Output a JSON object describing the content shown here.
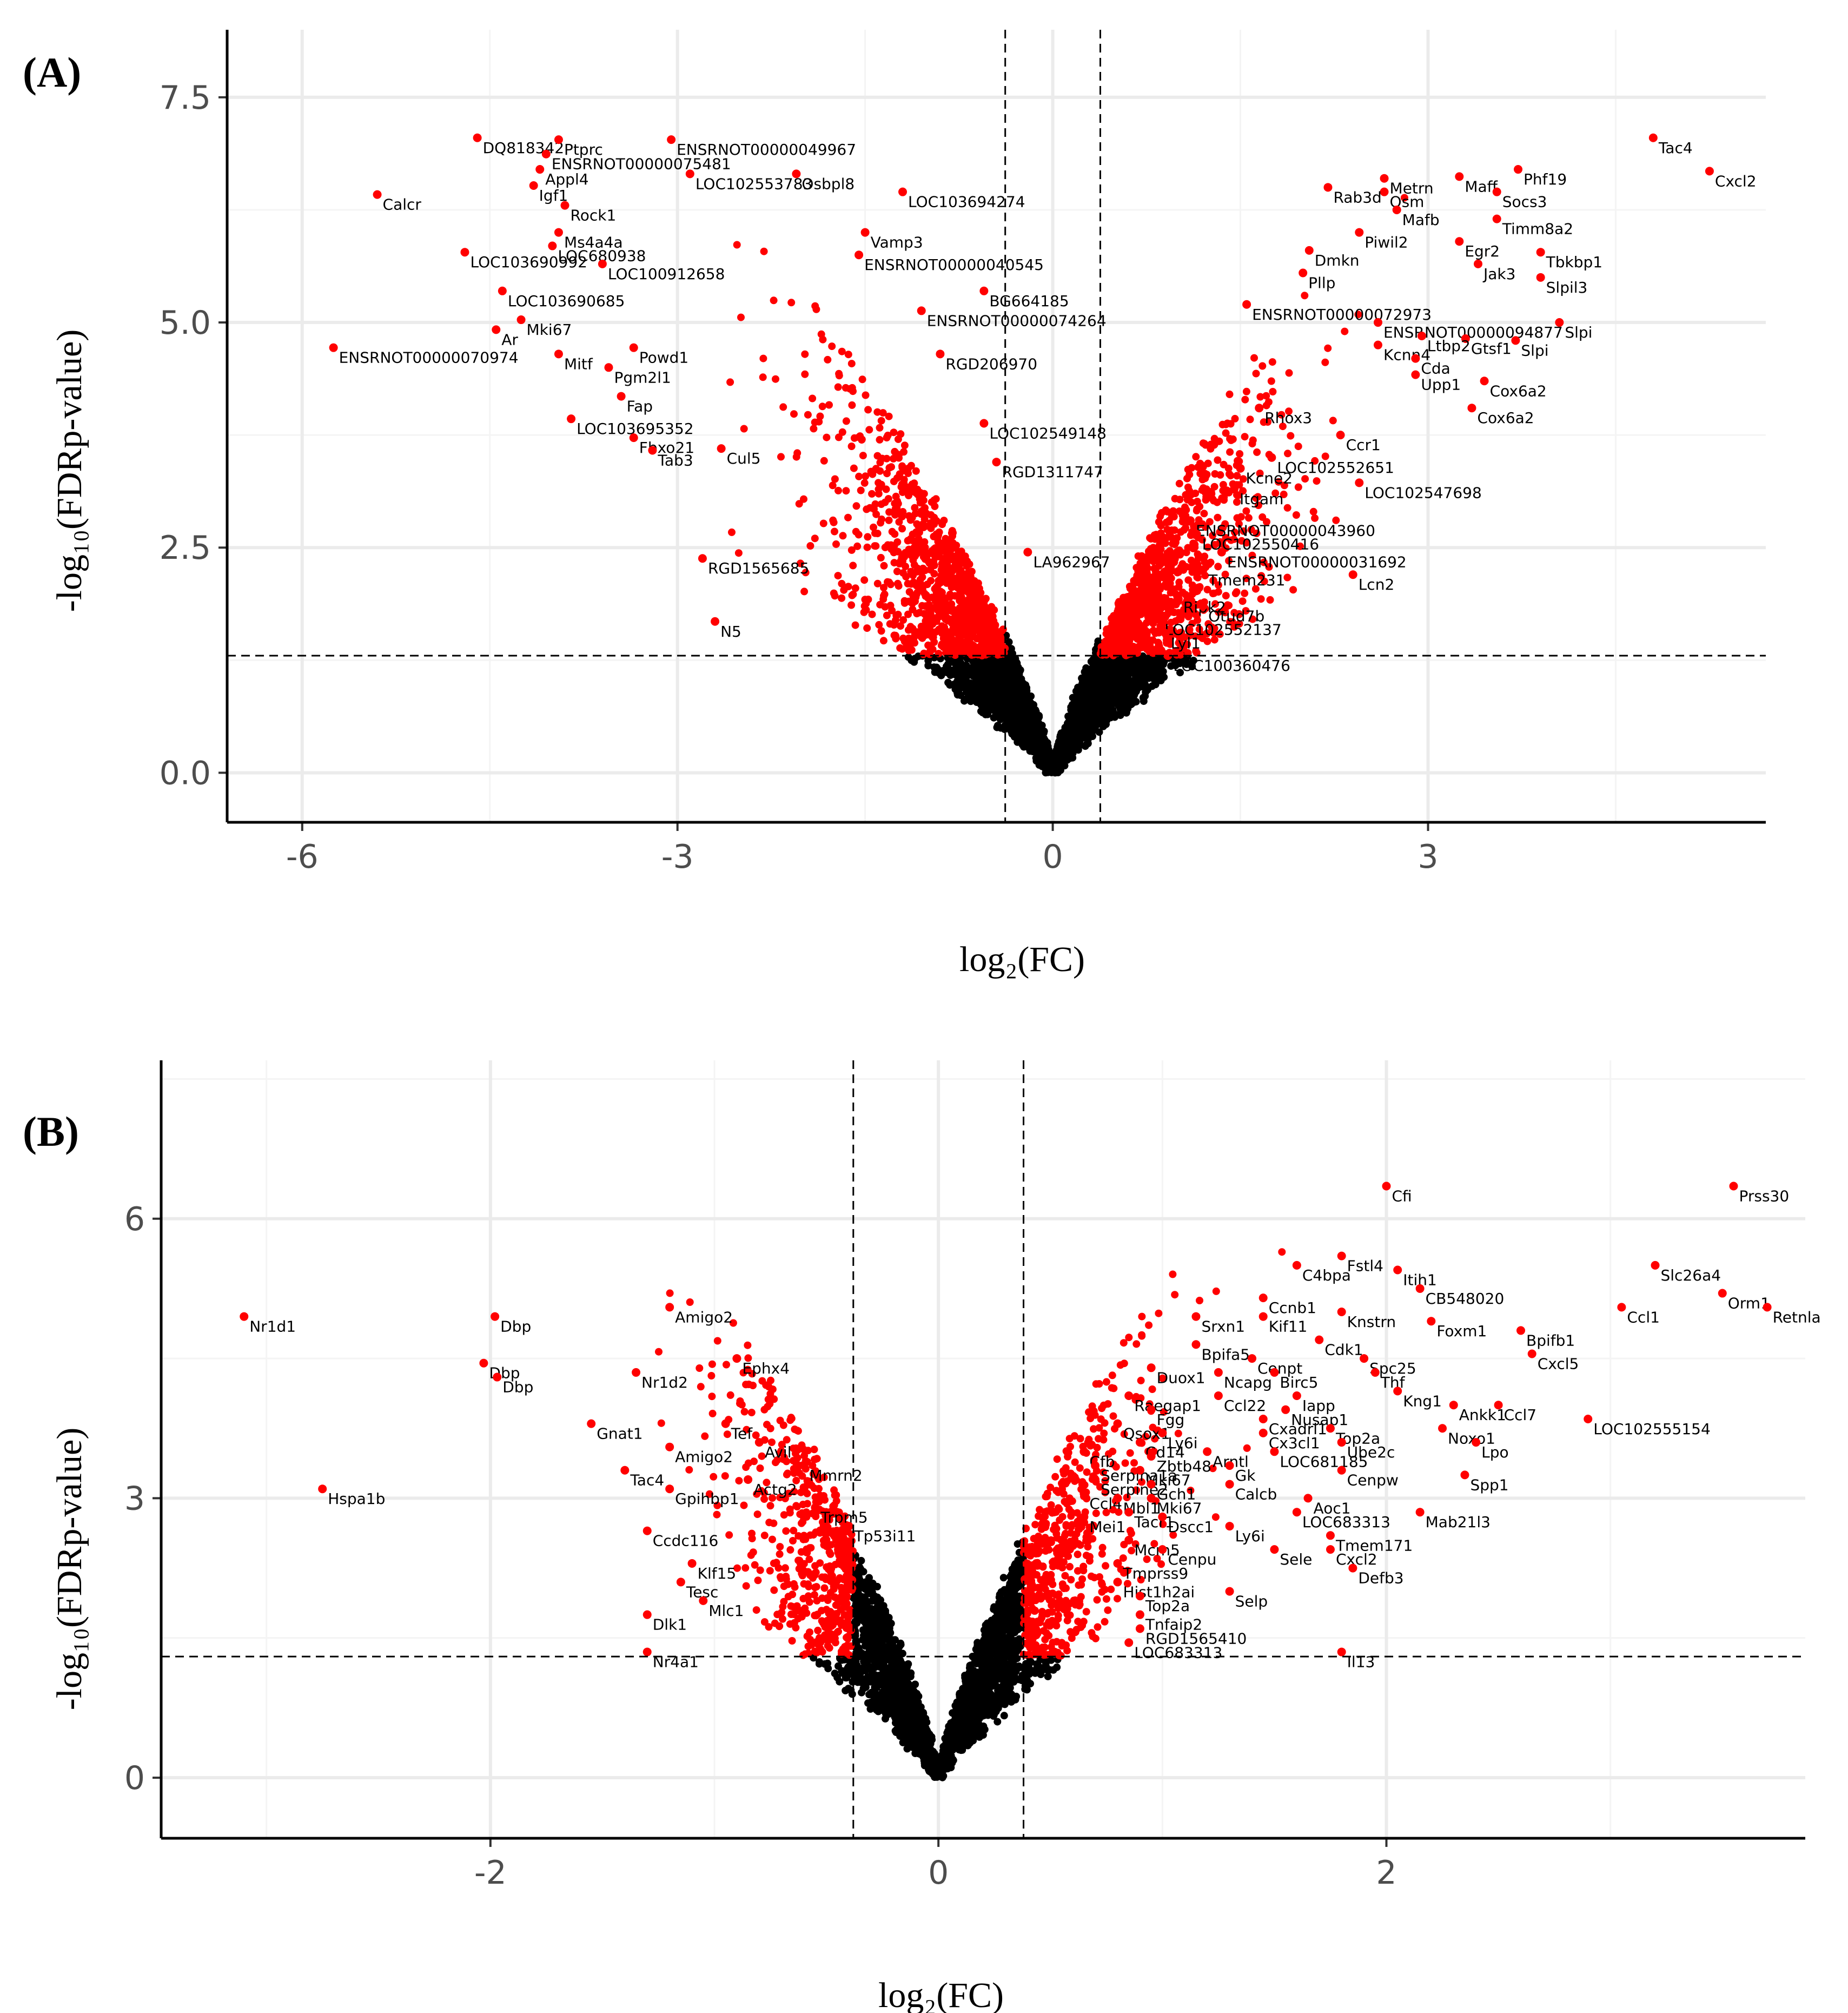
{
  "colors": {
    "significant": "#ff0000",
    "not_significant": "#000000",
    "grid": "#ebebeb",
    "tick_text": "#4d4d4d"
  },
  "chart_data": [
    {
      "panel": "(A)",
      "type": "scatter",
      "title": "",
      "xlabel": "log₂(FC)",
      "ylabel": "-log₁₀(FDRp-value)",
      "xlim": [
        -6.6,
        5.7
      ],
      "ylim": [
        -0.55,
        8.25
      ],
      "xticks": [
        -6,
        -3,
        0,
        3
      ],
      "xtick_labels": [
        "-6",
        "-3",
        "0",
        "3"
      ],
      "yticks": [
        0,
        2.5,
        5,
        7.5
      ],
      "ytick_labels": [
        "0.0",
        "2.5",
        "5.0",
        "7.5"
      ],
      "fc_threshold": [
        -0.38,
        0.38
      ],
      "fdr_threshold": 1.3,
      "grid": true,
      "legend": "none",
      "series": [
        {
          "name": "significant",
          "color": "#ff0000"
        },
        {
          "name": "not significant",
          "color": "#000000"
        }
      ],
      "labeled_points": [
        {
          "x": -4.6,
          "y": 7.05,
          "label": "DQ818342"
        },
        {
          "x": -3.95,
          "y": 7.03,
          "label": "Ptprc"
        },
        {
          "x": -3.05,
          "y": 7.03,
          "label": "ENSRNOT00000049967"
        },
        {
          "x": -4.05,
          "y": 6.87,
          "label": "ENSRNOT00000075481"
        },
        {
          "x": -4.1,
          "y": 6.7,
          "label": "Appl4"
        },
        {
          "x": -2.9,
          "y": 6.65,
          "label": "LOC102553783"
        },
        {
          "x": -2.05,
          "y": 6.65,
          "label": "Osbpl8"
        },
        {
          "x": -4.15,
          "y": 6.52,
          "label": "Igf1"
        },
        {
          "x": -5.4,
          "y": 6.42,
          "label": "Calcr"
        },
        {
          "x": -1.2,
          "y": 6.45,
          "label": "LOC103694274"
        },
        {
          "x": -4.7,
          "y": 5.78,
          "label": "LOC103690992"
        },
        {
          "x": -4.0,
          "y": 5.85,
          "label": "LOC680938"
        },
        {
          "x": -3.95,
          "y": 6.0,
          "label": "Ms4a4a"
        },
        {
          "x": -3.9,
          "y": 6.3,
          "label": "Rock1"
        },
        {
          "x": -3.6,
          "y": 5.65,
          "label": "LOC100912658"
        },
        {
          "x": -1.5,
          "y": 6.0,
          "label": "Vamp3"
        },
        {
          "x": -1.55,
          "y": 5.75,
          "label": "ENSRNOT00000040545"
        },
        {
          "x": -4.4,
          "y": 5.35,
          "label": "LOC103690685"
        },
        {
          "x": -0.55,
          "y": 5.35,
          "label": "BG664185"
        },
        {
          "x": -1.05,
          "y": 5.13,
          "label": "ENSRNOT00000074264"
        },
        {
          "x": -4.25,
          "y": 5.03,
          "label": "Mki67"
        },
        {
          "x": -4.45,
          "y": 4.92,
          "label": "Ar"
        },
        {
          "x": -5.75,
          "y": 4.72,
          "label": "ENSRNOT00000070974"
        },
        {
          "x": -3.95,
          "y": 4.65,
          "label": "Mitf"
        },
        {
          "x": -0.9,
          "y": 4.65,
          "label": "RGD206970"
        },
        {
          "x": -3.35,
          "y": 4.72,
          "label": "Powd1"
        },
        {
          "x": -3.55,
          "y": 4.5,
          "label": "Pgm2l1"
        },
        {
          "x": -3.45,
          "y": 4.18,
          "label": "Fap"
        },
        {
          "x": -3.85,
          "y": 3.93,
          "label": "LOC103695352"
        },
        {
          "x": -3.35,
          "y": 3.72,
          "label": "Fbxo21"
        },
        {
          "x": -3.2,
          "y": 3.58,
          "label": "Tab3"
        },
        {
          "x": -2.65,
          "y": 3.6,
          "label": "Cul5"
        },
        {
          "x": -0.55,
          "y": 3.88,
          "label": "LOC102549148"
        },
        {
          "x": -0.45,
          "y": 3.45,
          "label": "RGD1311747"
        },
        {
          "x": -2.8,
          "y": 2.38,
          "label": "RGD1565685"
        },
        {
          "x": -2.7,
          "y": 1.68,
          "label": "N5"
        },
        {
          "x": -0.2,
          "y": 2.45,
          "label": "LA962967"
        },
        {
          "x": 4.8,
          "y": 7.05,
          "label": "Tac4"
        },
        {
          "x": 5.25,
          "y": 6.68,
          "label": "Cxcl2"
        },
        {
          "x": 3.72,
          "y": 6.7,
          "label": "Phf19"
        },
        {
          "x": 3.25,
          "y": 6.62,
          "label": "Maff"
        },
        {
          "x": 2.65,
          "y": 6.6,
          "label": "Metrn"
        },
        {
          "x": 2.65,
          "y": 6.45,
          "label": "Osm"
        },
        {
          "x": 2.75,
          "y": 6.25,
          "label": "Mafb"
        },
        {
          "x": 3.55,
          "y": 6.45,
          "label": "Socs3"
        },
        {
          "x": 3.55,
          "y": 6.15,
          "label": "Timm8a2"
        },
        {
          "x": 2.2,
          "y": 6.5,
          "label": "Rab3d"
        },
        {
          "x": 2.45,
          "y": 6.0,
          "label": "Piwil2"
        },
        {
          "x": 3.25,
          "y": 5.9,
          "label": "Egr2"
        },
        {
          "x": 3.4,
          "y": 5.65,
          "label": "Jak3"
        },
        {
          "x": 3.9,
          "y": 5.78,
          "label": "Tbkbp1"
        },
        {
          "x": 3.9,
          "y": 5.5,
          "label": "Slpil3"
        },
        {
          "x": 2.05,
          "y": 5.8,
          "label": "Dmkn"
        },
        {
          "x": 2.0,
          "y": 5.55,
          "label": "Pllp"
        },
        {
          "x": 1.55,
          "y": 5.2,
          "label": "ENSRNOT00000072973"
        },
        {
          "x": 2.6,
          "y": 5.0,
          "label": "ENSRNOT00000094877"
        },
        {
          "x": 4.05,
          "y": 5.0,
          "label": "Slpi"
        },
        {
          "x": 3.7,
          "y": 4.8,
          "label": "Slpi"
        },
        {
          "x": 3.3,
          "y": 4.82,
          "label": "Gtsf1"
        },
        {
          "x": 2.95,
          "y": 4.85,
          "label": "Ltbp2"
        },
        {
          "x": 2.6,
          "y": 4.75,
          "label": "Kcnn4"
        },
        {
          "x": 2.9,
          "y": 4.6,
          "label": "Cda"
        },
        {
          "x": 2.9,
          "y": 4.42,
          "label": "Upp1"
        },
        {
          "x": 3.45,
          "y": 4.35,
          "label": "Cox6a2"
        },
        {
          "x": 3.35,
          "y": 4.05,
          "label": "Cox6a2"
        },
        {
          "x": 2.3,
          "y": 3.75,
          "label": "Ccr1"
        },
        {
          "x": 1.75,
          "y": 3.5,
          "label": "LOC102552651"
        },
        {
          "x": 2.45,
          "y": 3.22,
          "label": "LOC102547698"
        },
        {
          "x": 1.45,
          "y": 3.15,
          "label": "Itgam"
        },
        {
          "x": 1.5,
          "y": 3.38,
          "label": "Kcne2"
        },
        {
          "x": 1.65,
          "y": 4.05,
          "label": "Rhox3"
        },
        {
          "x": 1.1,
          "y": 2.8,
          "label": "ENSRNOT00000043960"
        },
        {
          "x": 1.15,
          "y": 2.65,
          "label": "LOC102550416"
        },
        {
          "x": 1.35,
          "y": 2.45,
          "label": "ENSRNOT00000031692"
        },
        {
          "x": 2.4,
          "y": 2.2,
          "label": "Lcn2"
        },
        {
          "x": 1.2,
          "y": 2.25,
          "label": "Tmem231"
        },
        {
          "x": 1.0,
          "y": 1.95,
          "label": "Ripk2"
        },
        {
          "x": 1.2,
          "y": 1.85,
          "label": "Otud7b"
        },
        {
          "x": 0.85,
          "y": 1.7,
          "label": "LOC102552137"
        },
        {
          "x": 0.9,
          "y": 1.55,
          "label": "Lyl1"
        },
        {
          "x": 0.92,
          "y": 1.3,
          "label": "LOC100360476"
        }
      ]
    },
    {
      "panel": "(B)",
      "type": "scatter",
      "title": "",
      "xlabel": "log₂(FC)",
      "ylabel": "-log₁₀(FDRp-value)",
      "xlim": [
        -3.47,
        3.87
      ],
      "ylim": [
        -0.65,
        7.7
      ],
      "xticks": [
        -2,
        0,
        2
      ],
      "xtick_labels": [
        "-2",
        "0",
        "2"
      ],
      "yticks": [
        0,
        3,
        6
      ],
      "ytick_labels": [
        "0",
        "3",
        "6"
      ],
      "fc_threshold": [
        -0.38,
        0.38
      ],
      "fdr_threshold": 1.3,
      "grid": true,
      "legend": "none",
      "series": [
        {
          "name": "significant",
          "color": "#ff0000"
        },
        {
          "name": "not significant",
          "color": "#000000"
        }
      ],
      "labeled_points": [
        {
          "x": 2.0,
          "y": 6.35,
          "label": "Cfi"
        },
        {
          "x": 3.55,
          "y": 6.35,
          "label": "Prss30"
        },
        {
          "x": -3.1,
          "y": 4.95,
          "label": "Nr1d1"
        },
        {
          "x": -1.98,
          "y": 4.95,
          "label": "Dbp"
        },
        {
          "x": -1.2,
          "y": 5.05,
          "label": "Amigo2"
        },
        {
          "x": -2.03,
          "y": 4.45,
          "label": "Dbp"
        },
        {
          "x": -1.97,
          "y": 4.3,
          "label": "Dbp"
        },
        {
          "x": -0.9,
          "y": 4.5,
          "label": "Ephx4"
        },
        {
          "x": -1.35,
          "y": 4.35,
          "label": "Nr1d2"
        },
        {
          "x": -2.75,
          "y": 3.1,
          "label": "Hspa1b"
        },
        {
          "x": -1.55,
          "y": 3.8,
          "label": "Gnat1"
        },
        {
          "x": -0.95,
          "y": 3.8,
          "label": "Tef"
        },
        {
          "x": -1.2,
          "y": 3.55,
          "label": "Amigo2"
        },
        {
          "x": -0.8,
          "y": 3.6,
          "label": "Avil"
        },
        {
          "x": -1.4,
          "y": 3.3,
          "label": "Tac4"
        },
        {
          "x": -0.6,
          "y": 3.35,
          "label": "Mmrn2"
        },
        {
          "x": -0.85,
          "y": 3.2,
          "label": "Actg2"
        },
        {
          "x": -1.2,
          "y": 3.1,
          "label": "Gpihbp1"
        },
        {
          "x": -0.55,
          "y": 2.9,
          "label": "Trpm5"
        },
        {
          "x": -1.3,
          "y": 2.65,
          "label": "Ccdc116"
        },
        {
          "x": -0.4,
          "y": 2.7,
          "label": "Tp53i11"
        },
        {
          "x": -1.1,
          "y": 2.3,
          "label": "Klf15"
        },
        {
          "x": -1.15,
          "y": 2.1,
          "label": "Tesc"
        },
        {
          "x": -1.05,
          "y": 1.9,
          "label": "Mlc1"
        },
        {
          "x": -1.3,
          "y": 1.75,
          "label": "Dlk1"
        },
        {
          "x": -1.3,
          "y": 1.35,
          "label": "Nr4a1"
        },
        {
          "x": 2.05,
          "y": 5.45,
          "label": "Itih1"
        },
        {
          "x": 1.8,
          "y": 5.6,
          "label": "Fstl4"
        },
        {
          "x": 1.6,
          "y": 5.5,
          "label": "C4bpa"
        },
        {
          "x": 3.2,
          "y": 5.5,
          "label": "Slc26a4"
        },
        {
          "x": 3.5,
          "y": 5.2,
          "label": "Orm1"
        },
        {
          "x": 3.7,
          "y": 5.05,
          "label": "Retnla"
        },
        {
          "x": 3.05,
          "y": 5.05,
          "label": "Ccl1"
        },
        {
          "x": 2.15,
          "y": 5.25,
          "label": "CB548020"
        },
        {
          "x": 1.45,
          "y": 5.15,
          "label": "Ccnb1"
        },
        {
          "x": 1.15,
          "y": 4.95,
          "label": "Srxn1"
        },
        {
          "x": 1.8,
          "y": 5.0,
          "label": "Knstrn"
        },
        {
          "x": 1.45,
          "y": 4.95,
          "label": "Kif11"
        },
        {
          "x": 2.2,
          "y": 4.9,
          "label": "Foxm1"
        },
        {
          "x": 2.6,
          "y": 4.8,
          "label": "Bpifb1"
        },
        {
          "x": 1.7,
          "y": 4.7,
          "label": "Cdk1"
        },
        {
          "x": 1.15,
          "y": 4.65,
          "label": "Bpifa5"
        },
        {
          "x": 2.65,
          "y": 4.55,
          "label": "Cxcl5"
        },
        {
          "x": 1.9,
          "y": 4.5,
          "label": "Spc25"
        },
        {
          "x": 1.4,
          "y": 4.5,
          "label": "Cenpt"
        },
        {
          "x": 1.5,
          "y": 4.35,
          "label": "Birc5"
        },
        {
          "x": 1.95,
          "y": 4.35,
          "label": "Thf"
        },
        {
          "x": 0.95,
          "y": 4.4,
          "label": "Duox1"
        },
        {
          "x": 1.25,
          "y": 4.35,
          "label": "Ncapg"
        },
        {
          "x": 2.05,
          "y": 4.15,
          "label": "Kng1"
        },
        {
          "x": 1.6,
          "y": 4.1,
          "label": "Iapp"
        },
        {
          "x": 2.3,
          "y": 4.0,
          "label": "Ankk1"
        },
        {
          "x": 2.5,
          "y": 4.0,
          "label": "Ccl7"
        },
        {
          "x": 0.85,
          "y": 4.1,
          "label": "Raegap1"
        },
        {
          "x": 1.25,
          "y": 4.1,
          "label": "Ccl22"
        },
        {
          "x": 1.55,
          "y": 3.95,
          "label": "Nusap1"
        },
        {
          "x": 0.95,
          "y": 3.95,
          "label": "Fgg"
        },
        {
          "x": 2.9,
          "y": 3.85,
          "label": "LOC102555154"
        },
        {
          "x": 1.45,
          "y": 3.85,
          "label": "Cxadrl1"
        },
        {
          "x": 2.25,
          "y": 3.75,
          "label": "Noxo1"
        },
        {
          "x": 0.8,
          "y": 3.8,
          "label": "Qsox1"
        },
        {
          "x": 1.75,
          "y": 3.75,
          "label": "Top2a"
        },
        {
          "x": 1.45,
          "y": 3.7,
          "label": "Cx3cl1"
        },
        {
          "x": 1.0,
          "y": 3.7,
          "label": "Ly6i"
        },
        {
          "x": 1.8,
          "y": 3.6,
          "label": "Ube2c"
        },
        {
          "x": 2.4,
          "y": 3.6,
          "label": "Lpo"
        },
        {
          "x": 0.9,
          "y": 3.6,
          "label": "Cd14"
        },
        {
          "x": 0.65,
          "y": 3.5,
          "label": "Cfb"
        },
        {
          "x": 1.5,
          "y": 3.5,
          "label": "LOC681185"
        },
        {
          "x": 1.2,
          "y": 3.5,
          "label": "Arntl"
        },
        {
          "x": 0.95,
          "y": 3.45,
          "label": "Zbtb48"
        },
        {
          "x": 0.7,
          "y": 3.35,
          "label": "Serpina1a"
        },
        {
          "x": 1.3,
          "y": 3.35,
          "label": "Gk"
        },
        {
          "x": 1.8,
          "y": 3.3,
          "label": "Cenpw"
        },
        {
          "x": 0.9,
          "y": 3.3,
          "label": "Mki67"
        },
        {
          "x": 2.35,
          "y": 3.25,
          "label": "Spp1"
        },
        {
          "x": 0.7,
          "y": 3.2,
          "label": "Serpine2"
        },
        {
          "x": 1.3,
          "y": 3.15,
          "label": "Calcb"
        },
        {
          "x": 0.95,
          "y": 3.15,
          "label": "Gch1"
        },
        {
          "x": 1.65,
          "y": 3.0,
          "label": "Aoc1"
        },
        {
          "x": 0.95,
          "y": 3.0,
          "label": "Mki67"
        },
        {
          "x": 0.65,
          "y": 3.05,
          "label": "Ccl4"
        },
        {
          "x": 0.8,
          "y": 3.0,
          "label": "Mbl1"
        },
        {
          "x": 1.6,
          "y": 2.85,
          "label": "LOC683313"
        },
        {
          "x": 2.15,
          "y": 2.85,
          "label": "Mab21l3"
        },
        {
          "x": 0.85,
          "y": 2.85,
          "label": "Tacr1"
        },
        {
          "x": 1.0,
          "y": 2.8,
          "label": "Dscc1"
        },
        {
          "x": 0.65,
          "y": 2.8,
          "label": "Mei1"
        },
        {
          "x": 1.3,
          "y": 2.7,
          "label": "Ly6i"
        },
        {
          "x": 1.75,
          "y": 2.6,
          "label": "Tmem171"
        },
        {
          "x": 0.85,
          "y": 2.55,
          "label": "Mcm5"
        },
        {
          "x": 1.5,
          "y": 2.45,
          "label": "Sele"
        },
        {
          "x": 1.75,
          "y": 2.45,
          "label": "Cxcl2"
        },
        {
          "x": 1.0,
          "y": 2.45,
          "label": "Cenpu"
        },
        {
          "x": 1.85,
          "y": 2.25,
          "label": "Defb3"
        },
        {
          "x": 0.8,
          "y": 2.3,
          "label": "Tmprss9"
        },
        {
          "x": 0.8,
          "y": 2.1,
          "label": "Hist1h2ai"
        },
        {
          "x": 1.3,
          "y": 2.0,
          "label": "Selp"
        },
        {
          "x": 0.9,
          "y": 1.95,
          "label": "Top2a"
        },
        {
          "x": 0.9,
          "y": 1.75,
          "label": "Tnfaip2"
        },
        {
          "x": 0.9,
          "y": 1.6,
          "label": "RGD1565410"
        },
        {
          "x": 0.85,
          "y": 1.45,
          "label": "LOC683313"
        },
        {
          "x": 1.8,
          "y": 1.35,
          "label": "Il13"
        }
      ]
    }
  ]
}
